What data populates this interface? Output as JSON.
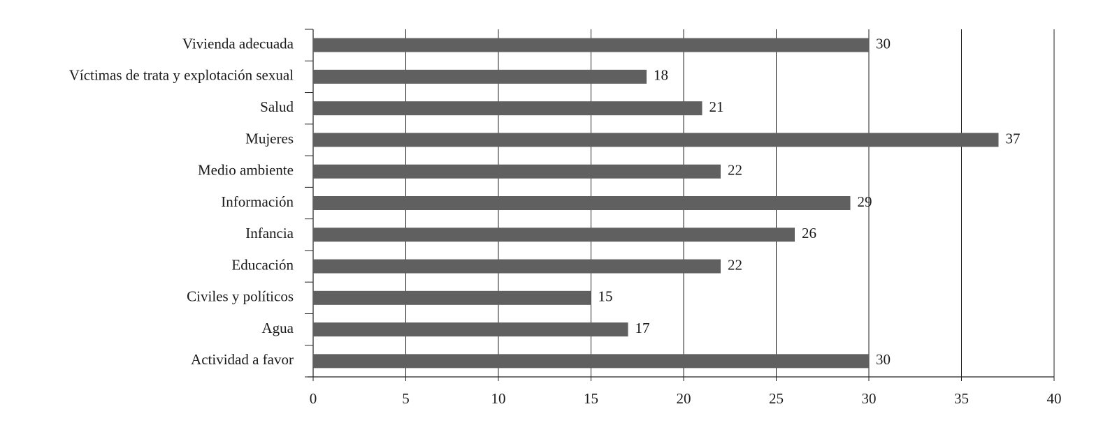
{
  "chart_data": {
    "type": "bar",
    "orientation": "horizontal",
    "categories": [
      "Vivienda adecuada",
      "Víctimas de trata y explotación sexual",
      "Salud",
      "Mujeres",
      "Medio ambiente",
      "Información",
      "Infancia",
      "Educación",
      "Civiles y políticos",
      "Agua",
      "Actividad a favor"
    ],
    "values": [
      30,
      18,
      21,
      37,
      22,
      29,
      26,
      22,
      15,
      17,
      30
    ],
    "color": "#606060",
    "xlim": [
      0,
      40
    ],
    "xticks": [
      0,
      5,
      10,
      15,
      20,
      25,
      30,
      35,
      40
    ],
    "grid": true
  }
}
